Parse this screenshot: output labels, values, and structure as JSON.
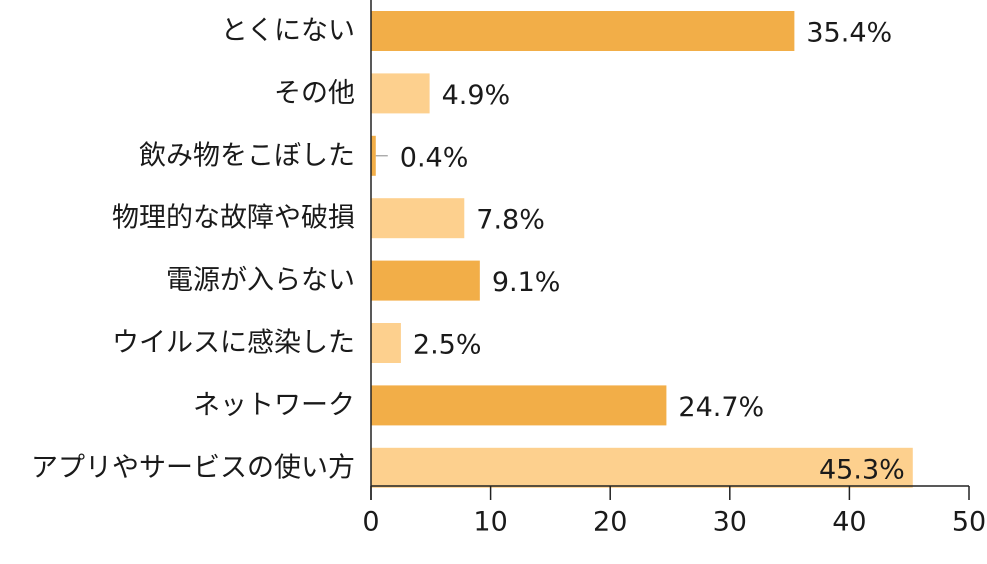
{
  "chart_data": {
    "type": "bar",
    "orientation": "horizontal",
    "categories": [
      "とくにない",
      "その他",
      "飲み物をこぼした",
      "物理的な故障や破損",
      "電源が入らない",
      "ウイルスに感染した",
      "ネットワーク",
      "アプリやサービスの使い方"
    ],
    "values": [
      35.4,
      4.9,
      0.4,
      7.8,
      9.1,
      2.5,
      24.7,
      45.3
    ],
    "value_labels": [
      "35.4%",
      "4.9%",
      "0.4%",
      "7.8%",
      "9.1%",
      "2.5%",
      "24.7%",
      "45.3%"
    ],
    "xlim": [
      0,
      50
    ],
    "xticks": [
      0,
      10,
      20,
      30,
      40,
      50
    ],
    "xtick_labels": [
      "0",
      "10",
      "20",
      "30",
      "40",
      "50"
    ],
    "grid": false,
    "colors": {
      "dark": "#F2AE48",
      "light": "#FDD08E"
    },
    "bar_color_pattern": [
      "dark",
      "light",
      "dark",
      "light",
      "dark",
      "light",
      "dark",
      "light"
    ]
  }
}
